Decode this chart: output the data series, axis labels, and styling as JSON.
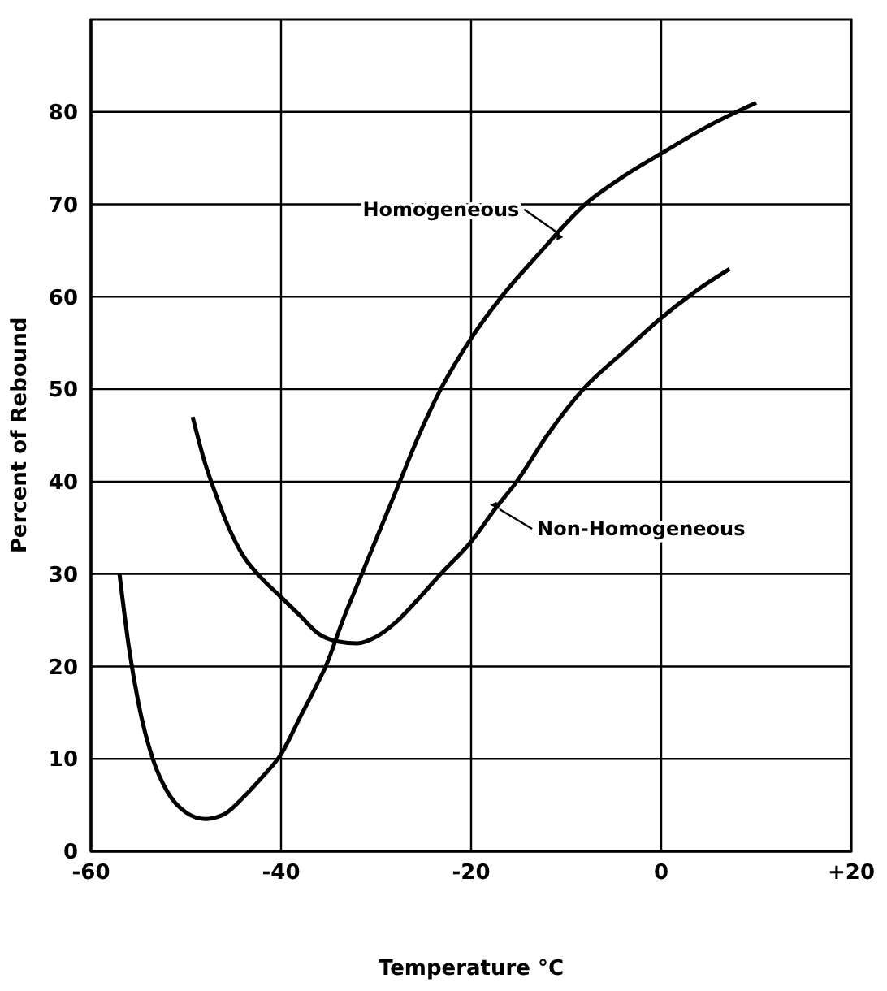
{
  "chart_data": {
    "type": "line",
    "xlabel": "Temperature °C",
    "ylabel": "Percent of Rebound",
    "xlim": [
      -60,
      20
    ],
    "xticks": [
      -60,
      -40,
      -20,
      0,
      {
        "value": 20,
        "label": "+20"
      }
    ],
    "ylim": [
      0,
      90
    ],
    "yticks": [
      0,
      10,
      20,
      30,
      40,
      50,
      60,
      70,
      80
    ],
    "grid": true,
    "legend": false,
    "marker": "none",
    "line_style": "solid",
    "series": [
      {
        "color": "#000000",
        "x": [
          -57,
          -56,
          -55,
          -53.5,
          -52,
          -50,
          -48,
          -46,
          -44,
          -42,
          -40,
          -38,
          -36,
          -35.3,
          -33.5,
          -31.5,
          -29.5,
          -27.5,
          -25.5,
          -23.2,
          -20,
          -16.8,
          -13,
          -8,
          -4,
          0,
          5,
          10
        ],
        "values": [
          30,
          22,
          16,
          10,
          6.5,
          4.2,
          3.5,
          4,
          5.8,
          8,
          10.5,
          14.5,
          18.5,
          20,
          25,
          30,
          35,
          40,
          45,
          50,
          55.5,
          60,
          64.5,
          70,
          73,
          75.5,
          78.5,
          81
        ]
      },
      {
        "color": "#000000",
        "x": [
          -49.3,
          -48,
          -47,
          -45.5,
          -44,
          -42,
          -40,
          -38,
          -36,
          -34,
          -32,
          -30,
          -28,
          -26,
          -23.2,
          -20,
          -17.5,
          -15.2,
          -12,
          -8.2,
          -4,
          0,
          3.5,
          7.2
        ],
        "values": [
          47,
          42,
          39,
          35,
          32,
          29.5,
          27.5,
          25.5,
          23.5,
          22.7,
          22.5,
          23.2,
          24.7,
          26.8,
          30,
          33.5,
          37,
          40,
          45,
          50,
          54,
          57.7,
          60.5,
          63
        ]
      }
    ],
    "annotations": [
      {
        "text": "Homogeneous",
        "x": -11,
        "y": 67
      },
      {
        "text": "Non-Homogeneous",
        "x": -17,
        "y": 37
      }
    ]
  }
}
